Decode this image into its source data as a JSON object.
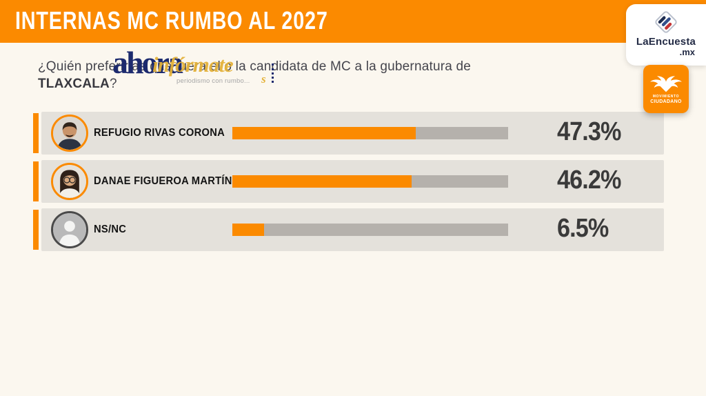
{
  "header": {
    "title": "INTERNAS MC RUMBO AL 2027"
  },
  "branding": {
    "la_encuesta": {
      "wordmark": "LaEncuesta",
      "tld": ".mx"
    },
    "mc": {
      "line1": "MOVIMIENTO",
      "line2": "CIUDADANO"
    }
  },
  "question": {
    "line1": "¿Quién preferirías que fuera el o la candidata de MC a la gubernatura de",
    "highlight": "TLAXCALA",
    "suffix": "?"
  },
  "watermark": {
    "word1": "ahora",
    "word2": "infórmate",
    "tagline": "periodismo con rumbo...",
    "swash": "s"
  },
  "chart_data": {
    "type": "bar",
    "orientation": "horizontal",
    "title": "INTERNAS MC RUMBO AL 2027",
    "question": "¿Quién preferirías que fuera el o la candidata de MC a la gubernatura de TLAXCALA?",
    "categories": [
      "REFUGIO RIVAS CORONA",
      "DANAE FIGUEROA MARTÍNEZ",
      "NS/NC"
    ],
    "values": [
      47.3,
      46.2,
      6.5
    ],
    "value_labels": [
      "47.3%",
      "46.2%",
      "6.5%"
    ],
    "xlim": [
      0,
      71
    ],
    "grid": false,
    "legend": false,
    "bar_color": "#FB8A00",
    "track_color": "#B5B1AC",
    "candidates": [
      {
        "name": "REFUGIO RIVAS CORONA",
        "value": 47.3,
        "label": "47.3%",
        "avatar": "male-photo"
      },
      {
        "name": "DANAE FIGUEROA MARTÍNEZ",
        "value": 46.2,
        "label": "46.2%",
        "avatar": "female-photo"
      },
      {
        "name": "NS/NC",
        "value": 6.5,
        "label": "6.5%",
        "avatar": "generic-silhouette"
      }
    ]
  },
  "colors": {
    "accent_orange": "#FB8A00",
    "page_background": "#FBF7EF",
    "row_background": "#E4E1DB",
    "track_gray": "#B5B1AC",
    "navy": "#1C2A6E",
    "yellow": "#E4B23A"
  }
}
